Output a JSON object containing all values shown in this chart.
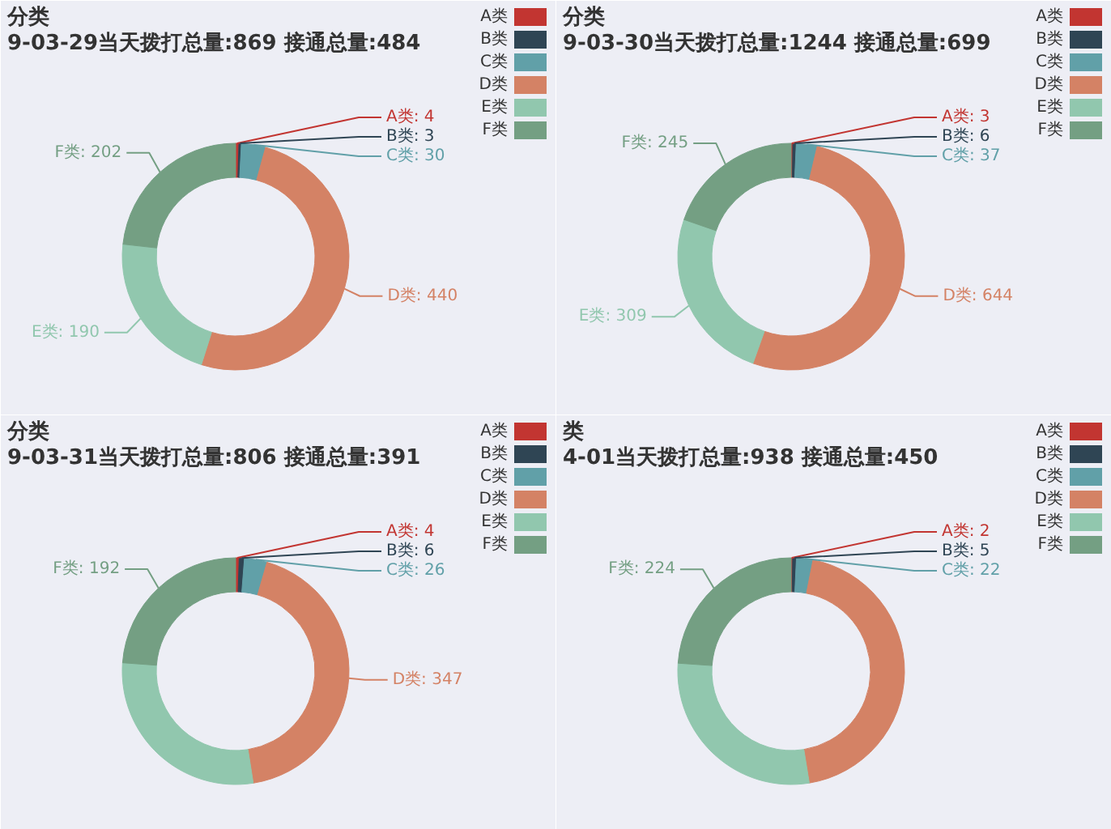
{
  "chart_data": [
    {
      "type": "donut",
      "title": "分类",
      "subtitle": "9-03-29当天拨打总量:869 接通总量:484",
      "categories": [
        "A类",
        "B类",
        "C类",
        "D类",
        "E类",
        "F类"
      ],
      "values": [
        4,
        3,
        30,
        440,
        190,
        202
      ],
      "colors": [
        "#c23531",
        "#2f4554",
        "#61a0a8",
        "#d48265",
        "#91c7ae",
        "#749f83"
      ],
      "value_labels": [
        "A类: 4",
        "B类: 3",
        "C类: 30",
        "D类: 440",
        "E类: 190",
        "F类: 202"
      ],
      "legend": "top right"
    },
    {
      "type": "donut",
      "title": "分类",
      "subtitle": "9-03-30当天拨打总量:1244 接通总量:699",
      "categories": [
        "A类",
        "B类",
        "C类",
        "D类",
        "E类",
        "F类"
      ],
      "values": [
        3,
        6,
        37,
        644,
        309,
        245
      ],
      "colors": [
        "#c23531",
        "#2f4554",
        "#61a0a8",
        "#d48265",
        "#91c7ae",
        "#749f83"
      ],
      "value_labels": [
        "A类: 3",
        "B类: 6",
        "C类: 37",
        "D类: 644",
        "E类: 309",
        "F类: 245"
      ],
      "legend": "top right"
    },
    {
      "type": "donut",
      "title": "分类",
      "subtitle": "9-03-31当天拨打总量:806 接通总量:391",
      "categories": [
        "A类",
        "B类",
        "C类",
        "D类",
        "E类",
        "F类"
      ],
      "values": [
        4,
        6,
        26,
        347,
        231,
        192
      ],
      "colors": [
        "#c23531",
        "#2f4554",
        "#61a0a8",
        "#d48265",
        "#91c7ae",
        "#749f83"
      ],
      "value_labels": [
        "A类: 4",
        "B类: 6",
        "C类: 26",
        "D类: 347",
        null,
        "F类: 192"
      ],
      "legend": "top right"
    },
    {
      "type": "donut",
      "title": "类",
      "subtitle": "4-01当天拨打总量:938 接通总量:450",
      "categories": [
        "A类",
        "B类",
        "C类",
        "D类",
        "E类",
        "F类"
      ],
      "values": [
        2,
        5,
        22,
        416,
        269,
        224
      ],
      "colors": [
        "#c23531",
        "#2f4554",
        "#61a0a8",
        "#d48265",
        "#91c7ae",
        "#749f83"
      ],
      "value_labels": [
        "A类: 2",
        "B类: 5",
        "C类: 22",
        null,
        null,
        "F类: 224"
      ],
      "legend": "top right"
    }
  ]
}
